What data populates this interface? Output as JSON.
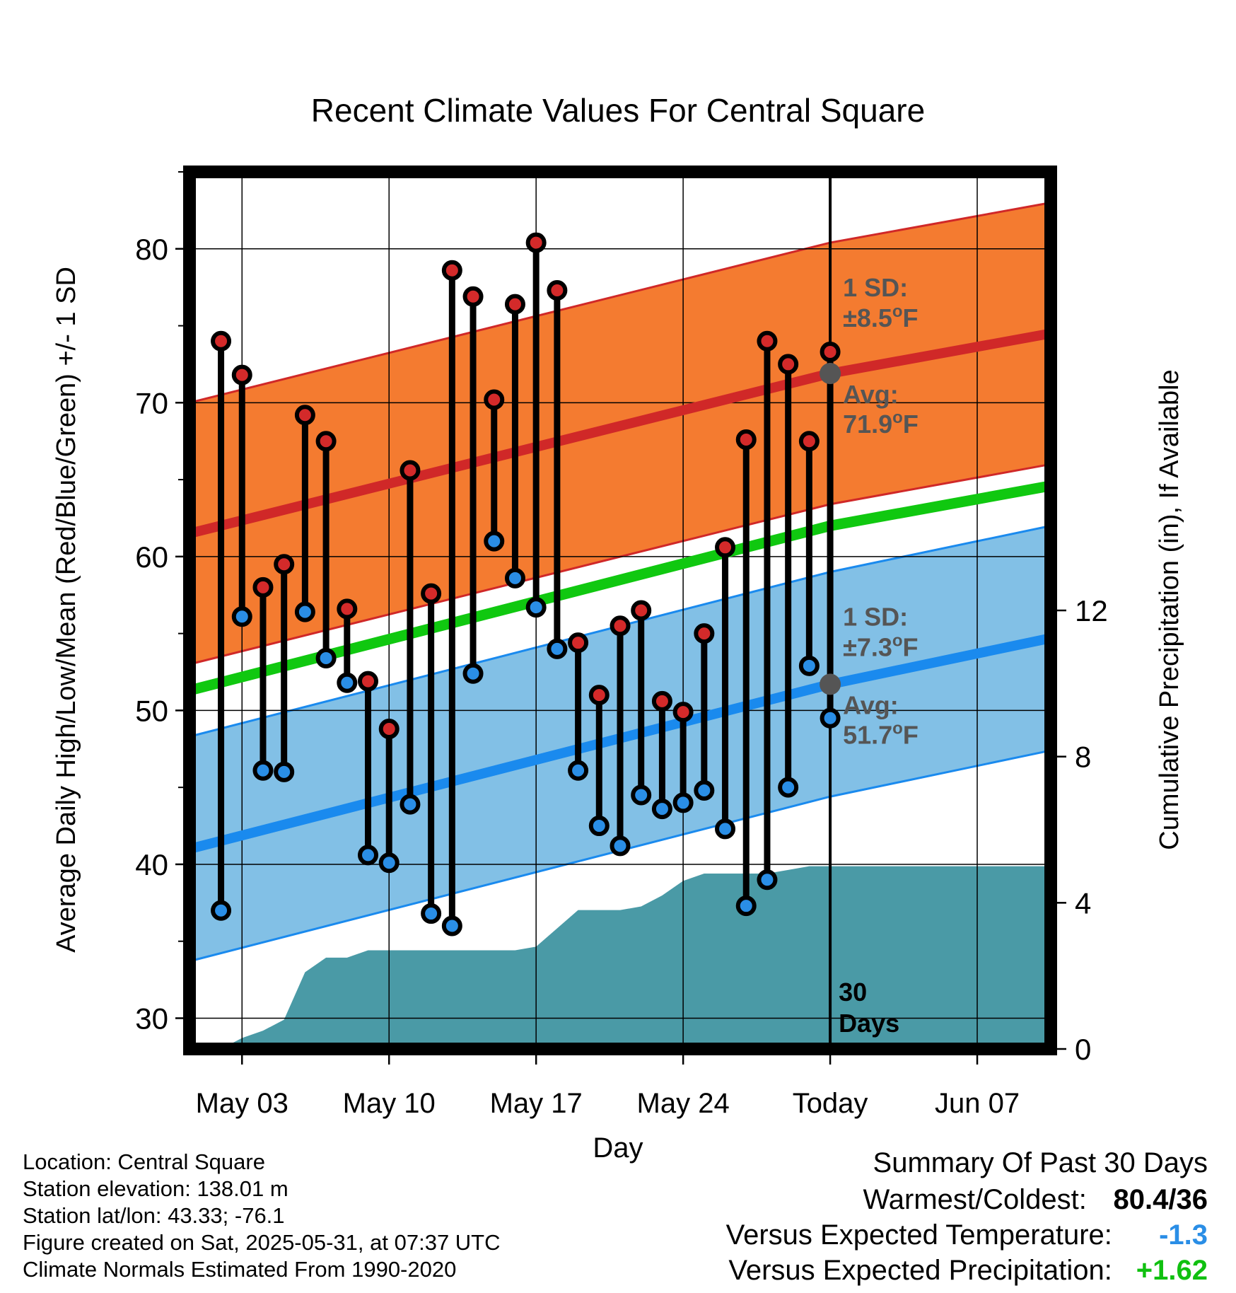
{
  "chart_data": {
    "type": "line",
    "title": "Recent Climate Values For Central Square",
    "xlabel": "Day",
    "ylabel": "Average Daily High/Low/Mean (Red/Blue/Green) +/- 1 SD",
    "y2label": "Cumulative Precipitation (in), If Available",
    "ylim": [
      28,
      85
    ],
    "y2lim": [
      0,
      24
    ],
    "yticks": [
      30,
      40,
      50,
      60,
      70,
      80
    ],
    "y2ticks": [
      0,
      4,
      8,
      12
    ],
    "x_range_days": [
      -30.5,
      10.5
    ],
    "x_ticks": [
      {
        "day": -28,
        "label": "May 03"
      },
      {
        "day": -21,
        "label": "May 10"
      },
      {
        "day": -14,
        "label": "May 17"
      },
      {
        "day": -7,
        "label": "May 24"
      },
      {
        "day": 0,
        "label": "Today"
      },
      {
        "day": 7,
        "label": "Jun 07"
      }
    ],
    "grid": true,
    "highs": [
      74.0,
      71.8,
      58.0,
      59.5,
      69.2,
      67.5,
      56.6,
      51.9,
      48.8,
      65.6,
      57.6,
      78.6,
      76.9,
      70.2,
      76.4,
      80.4,
      77.3,
      54.4,
      51.0,
      55.5,
      56.5,
      50.6,
      49.9,
      55.0,
      60.6,
      67.6,
      74.0,
      72.5,
      67.5,
      73.3
    ],
    "lows": [
      37.0,
      56.1,
      46.1,
      46.0,
      56.4,
      53.4,
      51.8,
      40.6,
      40.1,
      43.9,
      36.8,
      36.0,
      52.4,
      61.0,
      58.6,
      56.7,
      54.0,
      46.1,
      42.5,
      41.2,
      44.5,
      43.6,
      44.0,
      44.8,
      42.3,
      37.3,
      39.0,
      45.0,
      52.9,
      49.5
    ],
    "normal_high": {
      "start": 61.5,
      "today": 71.9,
      "end": 74.5,
      "sd": 8.5
    },
    "normal_low": {
      "start": 41.0,
      "today": 51.7,
      "end": 54.7,
      "sd": 7.3
    },
    "normal_mean": {
      "start": 51.3,
      "today": 62.0,
      "end": 64.6
    },
    "cumulative_precip": [
      0.0,
      0.3,
      0.5,
      0.8,
      2.1,
      2.5,
      2.5,
      2.7,
      2.7,
      2.7,
      2.7,
      2.7,
      2.7,
      2.7,
      2.7,
      2.8,
      3.3,
      3.8,
      3.8,
      3.8,
      3.9,
      4.2,
      4.6,
      4.8,
      4.8,
      4.8,
      4.8,
      4.9,
      5.0,
      5.0,
      5.0
    ],
    "annotations": {
      "high_sd_label": "1 SD:",
      "high_sd_value": "±8.5",
      "high_avg_label": "Avg:",
      "high_avg_value": "71.9",
      "low_sd_label": "1 SD:",
      "low_sd_value": "±7.3",
      "low_avg_label": "Avg:",
      "low_avg_value": "51.7",
      "degree_unit": "F",
      "degree_sup": "o",
      "window_count": "30",
      "window_unit": "Days"
    },
    "colors": {
      "high_band": "#f47b30",
      "high_line": "#d02828",
      "low_band": "#82c0e6",
      "low_line": "#1a8aee",
      "mean_line": "#10c810",
      "precip": "#4a9aa6",
      "high_marker": "#d42a2a",
      "low_marker": "#2a8ee6",
      "annotation_text": "#555555",
      "avg_dot": "#555555"
    }
  },
  "info": {
    "location": "Location: Central Square",
    "elevation": "Station elevation: 138.01 m",
    "latlon": "Station lat/lon: 43.33; -76.1",
    "created": "Figure created on Sat, 2025-05-31, at 07:37 UTC",
    "normals": "Climate Normals Estimated From 1990-2020"
  },
  "summary": {
    "title": "Summary Of Past 30 Days",
    "warmest_label": "Warmest/Coldest:",
    "warmest_value": "80.4/36",
    "temp_label": "Versus Expected Temperature:",
    "temp_value": "-1.3",
    "temp_color": "#2a8ee6",
    "precip_label": "Versus Expected Precipitation:",
    "precip_value": "+1.62",
    "precip_color": "#10c010"
  }
}
